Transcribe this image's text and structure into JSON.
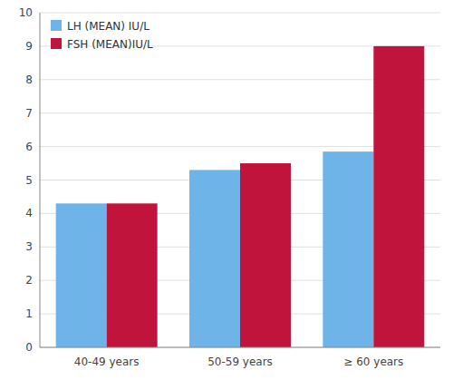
{
  "chart_data": {
    "type": "bar",
    "categories": [
      "40-49 years",
      "50-59 years",
      "≥ 60 years"
    ],
    "series": [
      {
        "name": "LH (MEAN) IU/L",
        "color": "#6EB4E8",
        "values": [
          4.3,
          5.3,
          5.85
        ]
      },
      {
        "name": "FSH (MEAN)IU/L",
        "color": "#C0143C",
        "values": [
          4.3,
          5.5,
          9.0
        ]
      }
    ],
    "ylim": [
      0,
      10
    ],
    "yticks": [
      0,
      1,
      2,
      3,
      4,
      5,
      6,
      7,
      8,
      9,
      10
    ],
    "grid": true,
    "legend": "upper-left"
  }
}
